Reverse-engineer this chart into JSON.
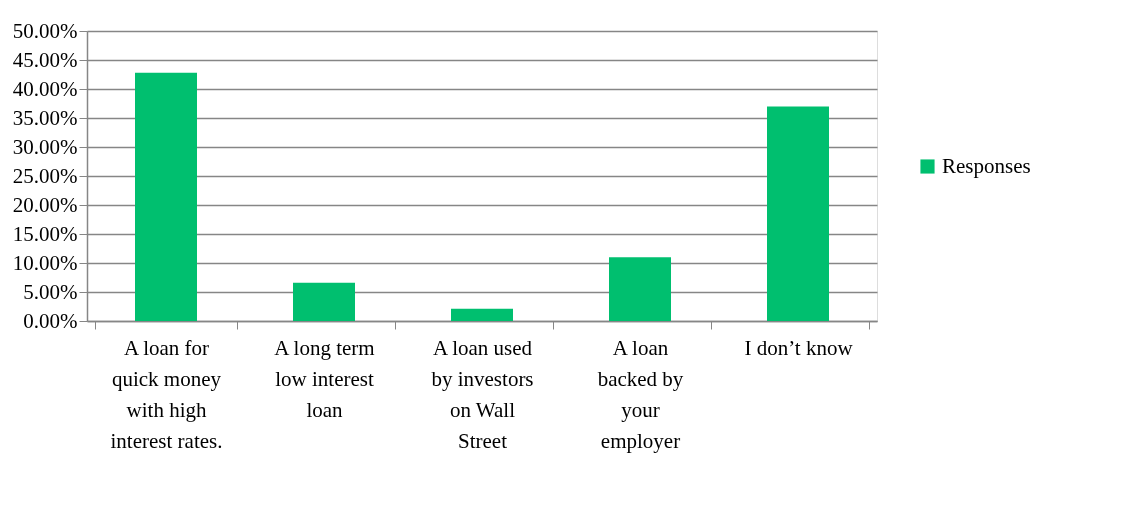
{
  "chart_data": {
    "type": "bar",
    "categories": [
      "A loan for\nquick money\nwith high\ninterest rates.",
      "A long term\nlow interest\nloan",
      "A loan used\nby investors\non Wall\nStreet",
      "A loan\nbacked by\nyour\nemployer",
      "I don’t know"
    ],
    "series": [
      {
        "name": "Responses",
        "color": "#00bf6f",
        "values": [
          42.8,
          6.6,
          2.1,
          11.0,
          37.0
        ]
      }
    ],
    "ylim": [
      0,
      50
    ],
    "yticks": [
      {
        "value": 0,
        "label": "0.00%"
      },
      {
        "value": 5,
        "label": "5.00%"
      },
      {
        "value": 10,
        "label": "10.00%"
      },
      {
        "value": 15,
        "label": "15.00%"
      },
      {
        "value": 20,
        "label": "20.00%"
      },
      {
        "value": 25,
        "label": "25.00%"
      },
      {
        "value": 30,
        "label": "30.00%"
      },
      {
        "value": 35,
        "label": "35.00%"
      },
      {
        "value": 40,
        "label": "40.00%"
      },
      {
        "value": 45,
        "label": "45.00%"
      },
      {
        "value": 50,
        "label": "50.00%"
      }
    ],
    "grid": "y",
    "legend": "right"
  }
}
